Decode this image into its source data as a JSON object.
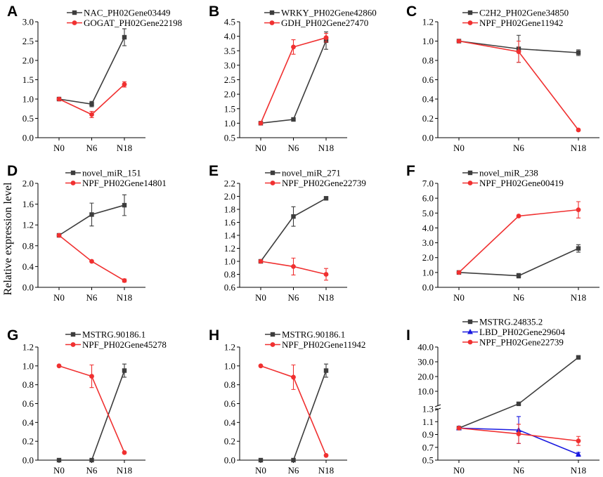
{
  "y_axis_label": "Relative expression level",
  "colors": {
    "black": "#3d3d3d",
    "red": "#f03030",
    "blue": "#1a1ae0"
  },
  "chart_data": [
    {
      "panel": "A",
      "type": "line",
      "categories": [
        "N0",
        "N6",
        "N18"
      ],
      "ylim": [
        0.0,
        3.0
      ],
      "yticks": [
        "0.0",
        "0.5",
        "1.0",
        "1.5",
        "2.0",
        "2.5",
        "3.0"
      ],
      "series": [
        {
          "name": "NAC_PH02Gene03449",
          "color": "black",
          "marker": "square",
          "values": [
            1.0,
            0.87,
            2.6
          ],
          "errors": [
            0.02,
            0.07,
            0.22
          ]
        },
        {
          "name": "GOGAT_PH02Gene22198",
          "color": "red",
          "marker": "circle",
          "values": [
            1.0,
            0.6,
            1.38
          ],
          "errors": [
            0.02,
            0.08,
            0.07
          ]
        }
      ]
    },
    {
      "panel": "B",
      "type": "line",
      "categories": [
        "N0",
        "N6",
        "N18"
      ],
      "ylim": [
        0.5,
        4.5
      ],
      "yticks": [
        "0.5",
        "1.0",
        "1.5",
        "2.0",
        "2.5",
        "3.0",
        "3.5",
        "4.0",
        "4.5"
      ],
      "series": [
        {
          "name": "WRKY_PH02Gene42860",
          "color": "black",
          "marker": "square",
          "values": [
            1.0,
            1.13,
            3.85
          ],
          "errors": [
            0.02,
            0.05,
            0.3
          ]
        },
        {
          "name": "GDH_PH02Gene27470",
          "color": "red",
          "marker": "circle",
          "values": [
            1.0,
            3.63,
            3.95
          ],
          "errors": [
            0.02,
            0.25,
            0.15
          ]
        }
      ]
    },
    {
      "panel": "C",
      "type": "line",
      "categories": [
        "N0",
        "N6",
        "N18"
      ],
      "ylim": [
        0.0,
        1.2
      ],
      "yticks": [
        "0.0",
        "0.2",
        "0.4",
        "0.6",
        "0.8",
        "1.0",
        "1.2"
      ],
      "series": [
        {
          "name": "C2H2_PH02Gene34850",
          "color": "black",
          "marker": "square",
          "values": [
            1.0,
            0.92,
            0.88
          ],
          "errors": [
            0.01,
            0.14,
            0.03
          ]
        },
        {
          "name": "NPF_PH02Gene11942",
          "color": "red",
          "marker": "circle",
          "values": [
            1.0,
            0.89,
            0.08
          ],
          "errors": [
            0.01,
            0.11,
            0.01
          ]
        }
      ]
    },
    {
      "panel": "D",
      "type": "line",
      "categories": [
        "N0",
        "N6",
        "N18"
      ],
      "ylim": [
        0.0,
        2.0
      ],
      "yticks": [
        "0.0",
        "0.4",
        "0.8",
        "1.2",
        "1.6",
        "2.0"
      ],
      "series": [
        {
          "name": "novel_miR_151",
          "color": "black",
          "marker": "square",
          "values": [
            1.0,
            1.4,
            1.58
          ],
          "errors": [
            0.01,
            0.22,
            0.2
          ]
        },
        {
          "name": "NPF_PH02Gene14801",
          "color": "red",
          "marker": "circle",
          "values": [
            1.0,
            0.5,
            0.13
          ],
          "errors": [
            0.01,
            0.01,
            0.03
          ]
        }
      ]
    },
    {
      "panel": "E",
      "type": "line",
      "categories": [
        "N0",
        "N6",
        "N18"
      ],
      "ylim": [
        0.6,
        2.2
      ],
      "yticks": [
        "0.6",
        "0.8",
        "1.0",
        "1.2",
        "1.4",
        "1.6",
        "1.8",
        "2.0",
        "2.2"
      ],
      "series": [
        {
          "name": "novel_miR_271",
          "color": "black",
          "marker": "square",
          "values": [
            1.0,
            1.69,
            1.97
          ],
          "errors": [
            0.01,
            0.15,
            0.01
          ]
        },
        {
          "name": "NPF_PH02Gene22739",
          "color": "red",
          "marker": "circle",
          "values": [
            1.0,
            0.92,
            0.8
          ],
          "errors": [
            0.01,
            0.13,
            0.09
          ]
        }
      ]
    },
    {
      "panel": "F",
      "type": "line",
      "categories": [
        "N0",
        "N6",
        "N18"
      ],
      "ylim": [
        0.0,
        7.0
      ],
      "yticks": [
        "0.0",
        "1.0",
        "2.0",
        "3.0",
        "4.0",
        "5.0",
        "6.0",
        "7.0"
      ],
      "series": [
        {
          "name": "novel_miR_238",
          "color": "black",
          "marker": "square",
          "values": [
            1.0,
            0.78,
            2.62
          ],
          "errors": [
            0.02,
            0.15,
            0.25
          ]
        },
        {
          "name": "NPF_PH02Gene00419",
          "color": "red",
          "marker": "circle",
          "values": [
            1.0,
            4.8,
            5.22
          ],
          "errors": [
            0.02,
            0.05,
            0.55
          ]
        }
      ]
    },
    {
      "panel": "G",
      "type": "line",
      "categories": [
        "N0",
        "N6",
        "N18"
      ],
      "ylim": [
        0.0,
        1.2
      ],
      "yticks": [
        "0.0",
        "0.2",
        "0.4",
        "0.6",
        "0.8",
        "1.0",
        "1.2"
      ],
      "series": [
        {
          "name": "MSTRG.90186.1",
          "color": "black",
          "marker": "square",
          "values": [
            0.0,
            0.0,
            0.95
          ],
          "errors": [
            0.003,
            0.003,
            0.07
          ]
        },
        {
          "name": "NPF_PH02Gene45278",
          "color": "red",
          "marker": "circle",
          "values": [
            1.0,
            0.89,
            0.08
          ],
          "errors": [
            0.005,
            0.12,
            0.005
          ]
        }
      ]
    },
    {
      "panel": "H",
      "type": "line",
      "categories": [
        "N0",
        "N6",
        "N18"
      ],
      "ylim": [
        0.0,
        1.2
      ],
      "yticks": [
        "0.0",
        "0.2",
        "0.4",
        "0.6",
        "0.8",
        "1.0",
        "1.2"
      ],
      "series": [
        {
          "name": "MSTRG.90186.1",
          "color": "black",
          "marker": "square",
          "values": [
            0.0,
            0.0,
            0.95
          ],
          "errors": [
            0.003,
            0.003,
            0.07
          ]
        },
        {
          "name": "NPF_PH02Gene11942",
          "color": "red",
          "marker": "circle",
          "values": [
            1.0,
            0.88,
            0.05
          ],
          "errors": [
            0.005,
            0.13,
            0.005
          ]
        }
      ]
    },
    {
      "panel": "I",
      "type": "line",
      "categories": [
        "N0",
        "N6",
        "N18"
      ],
      "broken_axis": true,
      "ylim_lower": [
        0.5,
        1.3
      ],
      "yticks_lower": [
        "0.5",
        "0.7",
        "0.9",
        "1.1",
        "1.3"
      ],
      "ylim_upper": [
        0.0,
        40.0
      ],
      "yticks_upper": [
        "10.0",
        "20.0",
        "30.0",
        "40.0"
      ],
      "series": [
        {
          "name": "MSTRG.24835.2",
          "color": "black",
          "marker": "square",
          "values": [
            1.0,
            1.5,
            33.0
          ],
          "errors": [
            0.01,
            0.02,
            1.2
          ]
        },
        {
          "name": "LBD_PH02Gene29604",
          "color": "blue",
          "marker": "triangle",
          "values": [
            1.0,
            0.97,
            0.59
          ],
          "errors": [
            0.01,
            0.21,
            0.03
          ]
        },
        {
          "name": "NPF_PH02Gene22739",
          "color": "red",
          "marker": "circle",
          "values": [
            1.0,
            0.91,
            0.8
          ],
          "errors": [
            0.01,
            0.15,
            0.07
          ]
        }
      ]
    }
  ]
}
